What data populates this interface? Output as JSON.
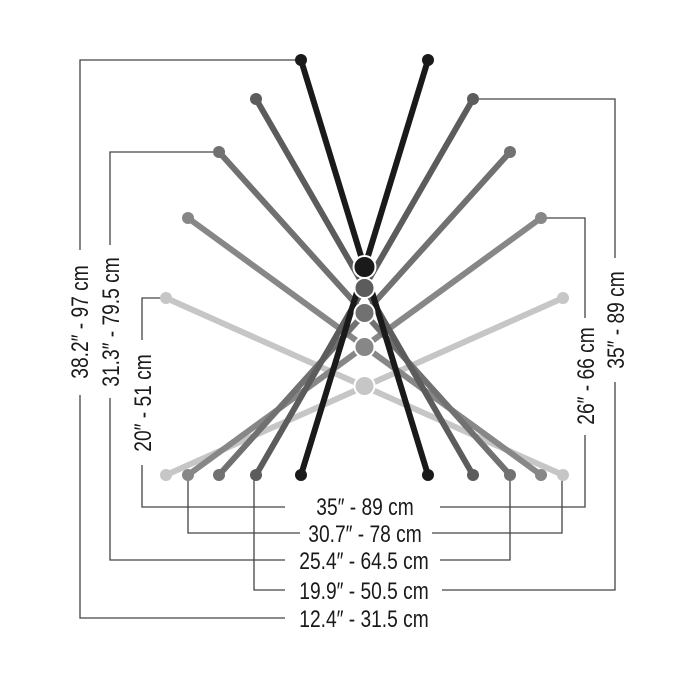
{
  "diagram": {
    "colors": {
      "black": "#1a1a1a",
      "dark_gray": "#5c5c5c",
      "gray": "#717171",
      "mid_gray": "#878787",
      "light_gray": "#c6c6c6",
      "dimension_line": "#444444"
    },
    "height_labels_left": [
      "38.2″ - 97 cm",
      "31.3″ - 79.5 cm",
      "20″ - 51 cm"
    ],
    "height_labels_right": [
      "26″ - 66 cm",
      "35″ - 89 cm"
    ],
    "width_labels_bottom": [
      "35″ - 89 cm",
      "30.7″ - 78 cm",
      "25.4″ - 64.5 cm",
      "19.9″ - 50.5 cm",
      "12.4″ - 31.5 cm"
    ]
  }
}
